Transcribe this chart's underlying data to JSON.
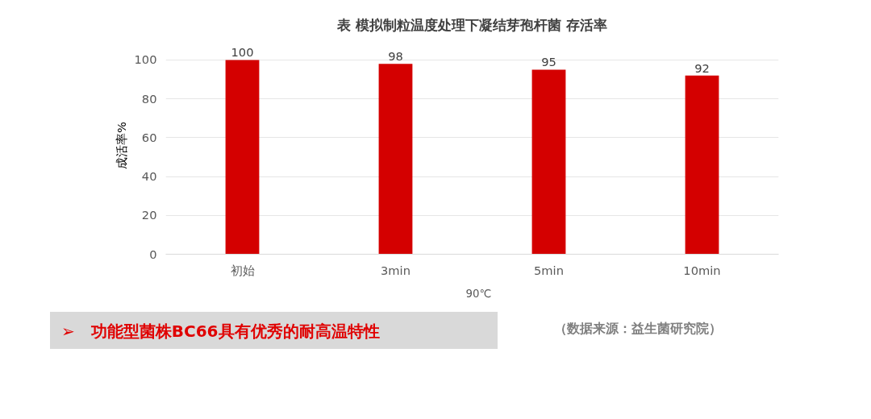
{
  "chart_data": {
    "type": "bar",
    "title": "表 模拟制粒温度处理下凝结芽孢杆菌 存活率",
    "ylabel": "成活率%",
    "categories": [
      "初始",
      "3min",
      "5min",
      "10min"
    ],
    "series": [
      {
        "name": "90℃",
        "color": "#d40000",
        "values": [
          100,
          98,
          95,
          92
        ]
      }
    ],
    "ylim": [
      0,
      100
    ],
    "yticks": [
      0,
      20,
      40,
      60,
      80,
      100
    ],
    "grid": "y",
    "legend": "bottom",
    "data_labels": true,
    "annotations": [
      "➢　功能型菌株BC66具有优秀的耐高温特性",
      "（数据来源：益生菌研究院）"
    ]
  }
}
